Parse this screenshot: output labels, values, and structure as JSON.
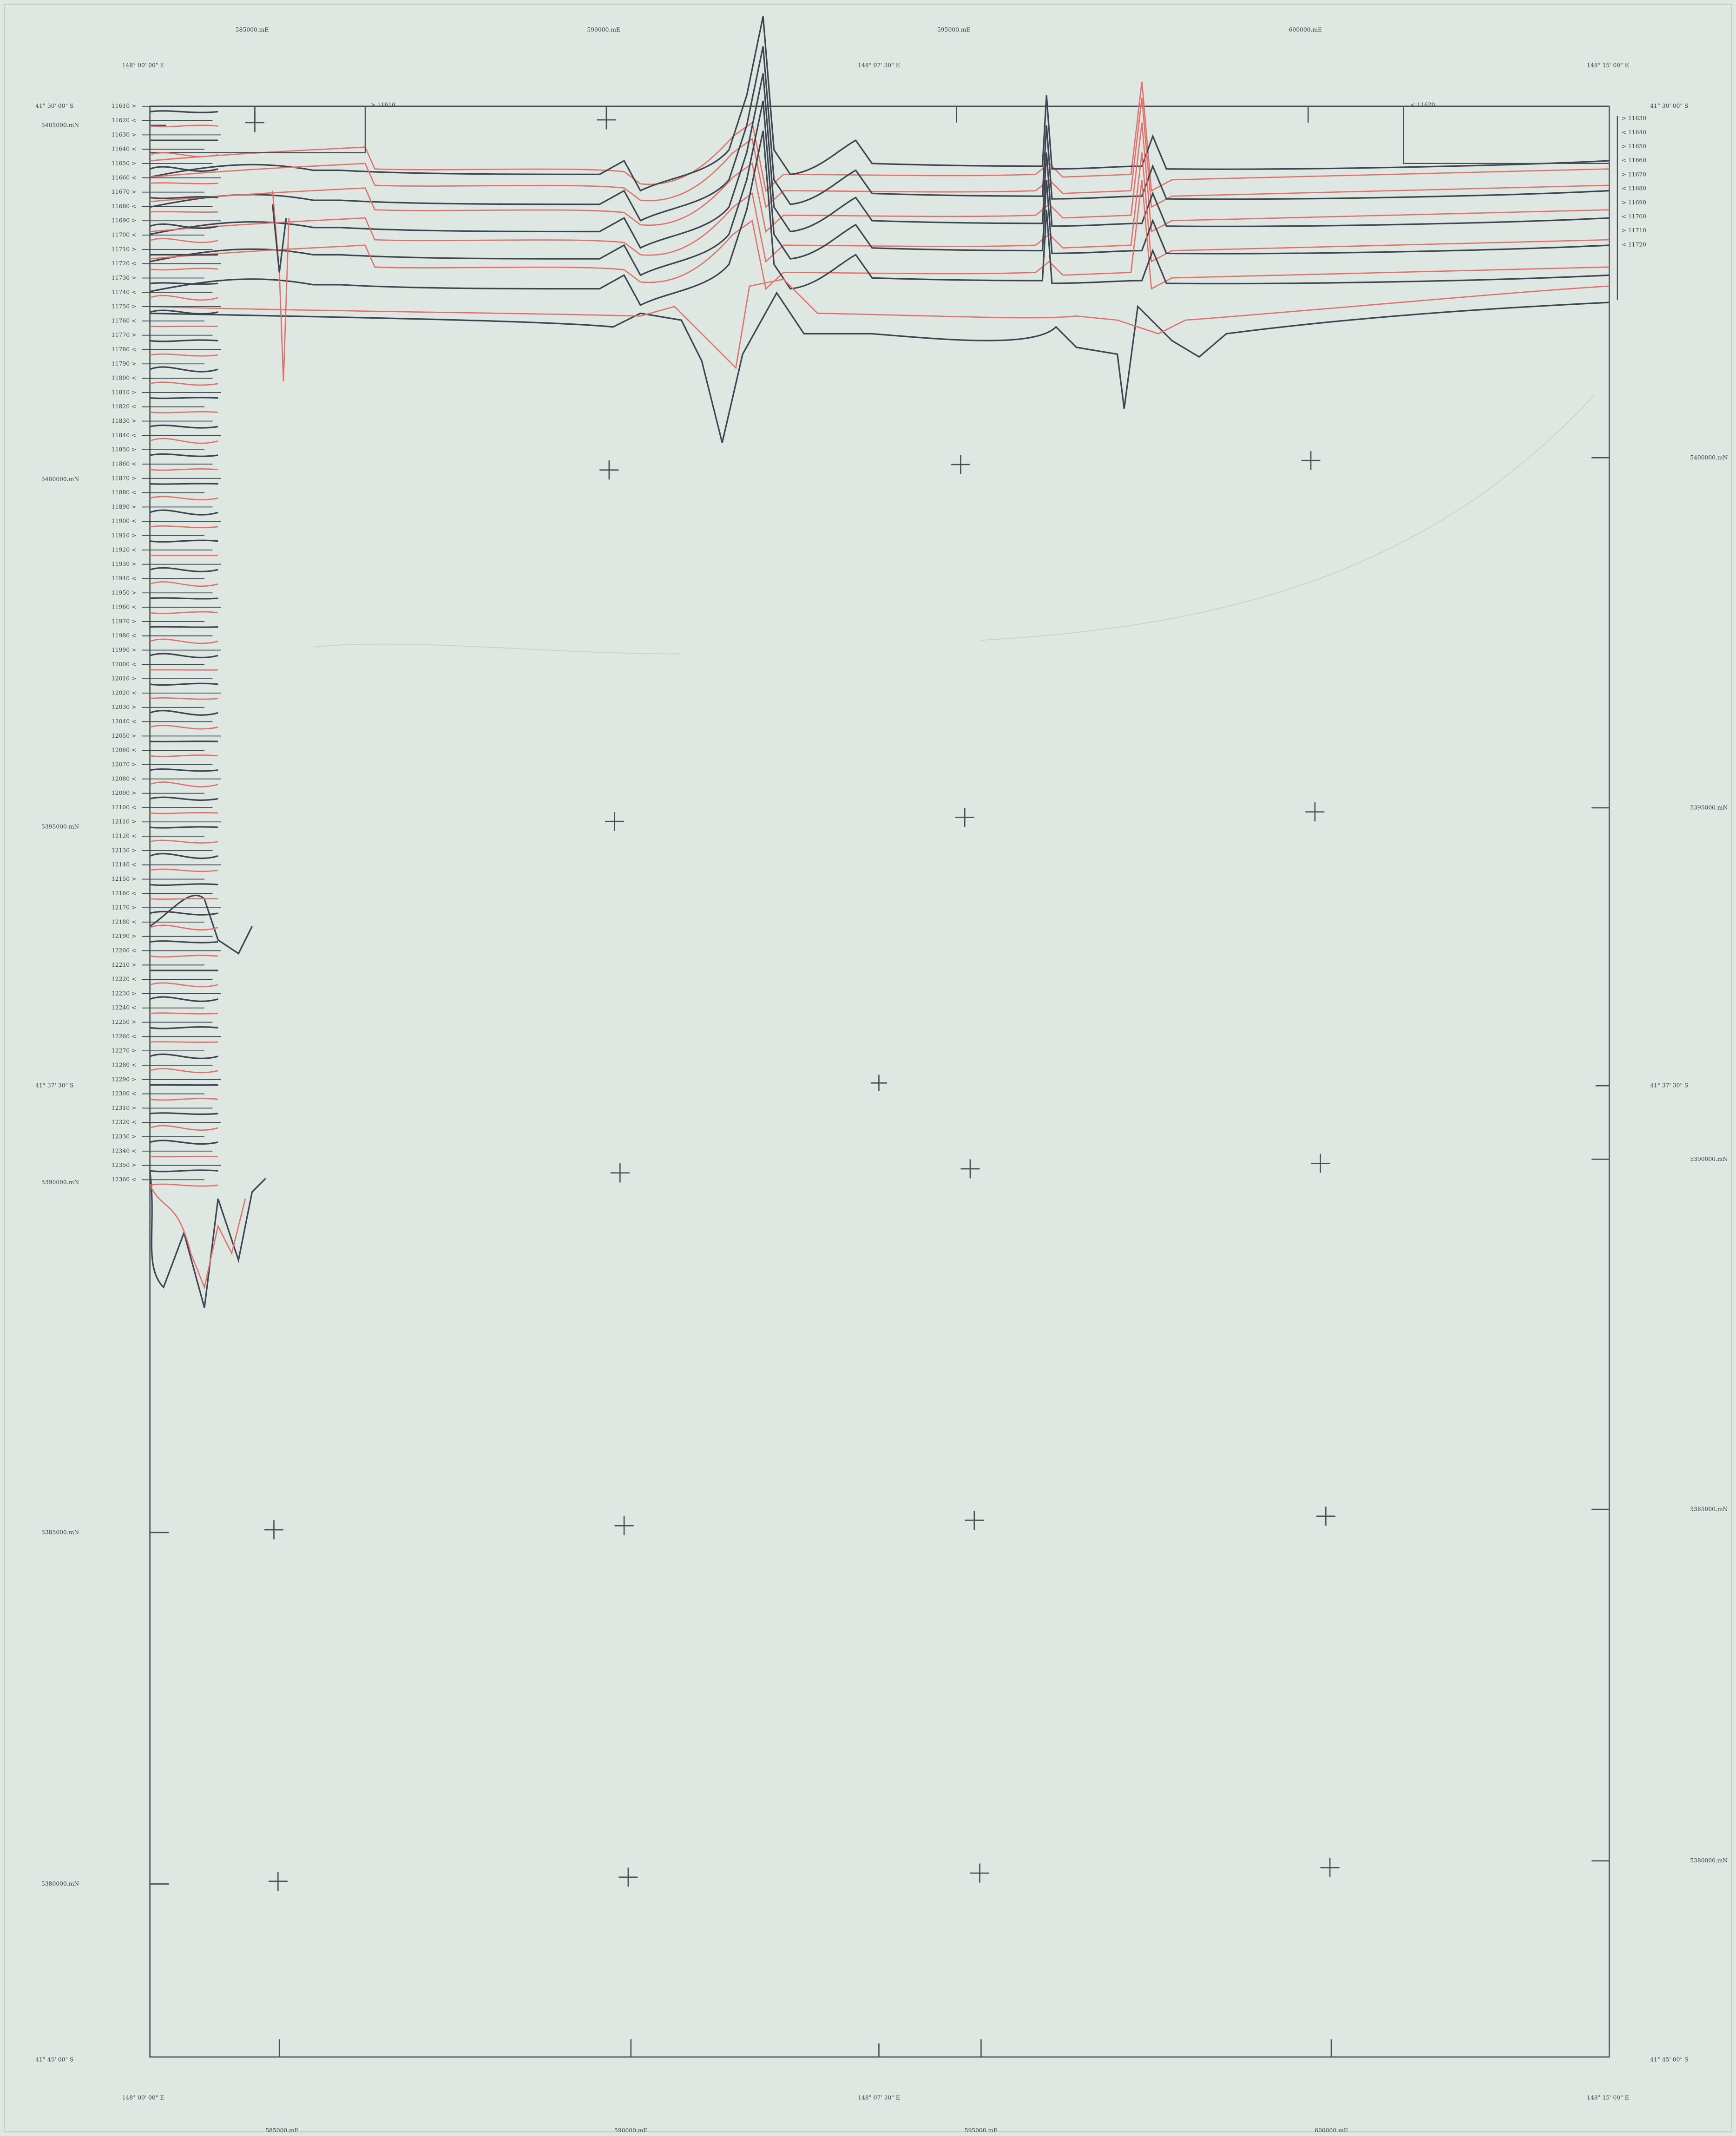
{
  "eastings_top": [
    "585000.mE",
    "590000.mE",
    "595000.mE",
    "600000.mE"
  ],
  "eastings_bottom": [
    "585000.mE",
    "590000.mE",
    "595000.mE",
    "600000.mE"
  ],
  "northings_left": [
    "5405000.mN",
    "5400000.mN",
    "5395000.mN",
    "5390000.mN",
    "5385000.mN",
    "5380000.mN"
  ],
  "northings_right": [
    "5400000.mN",
    "5395000.mN",
    "5390000.mN",
    "5385000.mN",
    "5380000.mN"
  ],
  "longitudes": [
    "148°  00' 00\" E",
    "148°  07' 30\" E",
    "148°  15' 00\" E"
  ],
  "latitudes": [
    "41°  30' 00\" S",
    "41°  37' 30\" S",
    "41°  45' 00\" S"
  ],
  "line_labels_left": [
    "11610 >",
    "11620 <",
    "11630 >",
    "11640 <",
    "11650 >",
    "11660 <",
    "11670 >",
    "11680 <",
    "11690 >",
    "11700 <",
    "11710 >",
    "11720 <",
    "11730 >",
    "11740 <",
    "11750 >",
    "11760 <",
    "11770 >",
    "11780 <",
    "11790 >",
    "11800 <",
    "11810 >",
    "11820 <",
    "11830 >",
    "11840 <",
    "11850 >",
    "11860 <",
    "11870 >",
    "11880 <",
    "11890 >",
    "11900 <",
    "11910 >",
    "11920 <",
    "11930 >",
    "11940 <",
    "11950 >",
    "11960 <",
    "11970 >",
    "11980 <",
    "11990 >",
    "12000 <",
    "12010 >",
    "12020 <",
    "12030 >",
    "12040 <",
    "12050 >",
    "12060 <",
    "12070 >",
    "12080 <",
    "12090 >",
    "12100 <",
    "12110 >",
    "12120 <",
    "12130 >",
    "12140 <",
    "12150 >",
    "12160 <",
    "12170 >",
    "12180 <",
    "12190 >",
    "12200 <",
    "12210 >",
    "12220 <",
    "12230 >",
    "12240 <",
    "12250 >",
    "12260 <",
    "12270 >",
    "12280 <",
    "12290 >",
    "12300 <",
    "12310 >",
    "12320 <",
    "12330 >",
    "12340 <",
    "12350 >",
    "12360 <"
  ],
  "line_labels_right": [
    "> 11630",
    "< 11640",
    "> 11650",
    "< 11660",
    "> 11670",
    "< 11680",
    "> 11690",
    "< 11700",
    "> 11710",
    "< 11720"
  ],
  "line_labels_top": [
    "> 11610",
    "< 11620"
  ]
}
